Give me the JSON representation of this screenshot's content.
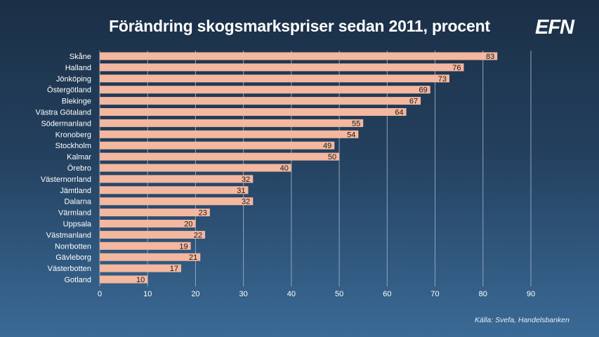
{
  "header": {
    "title": "Förändring skogsmarkspriser sedan 2011, procent",
    "logo_text": "EFN"
  },
  "footer": {
    "source": "Källa: Svefa, Handelsbanken"
  },
  "colors": {
    "bar": "#f4b79f",
    "grid": "#8fa6bd",
    "text": "#ffffff",
    "label_text": "#1a1a1a"
  },
  "chart_data": {
    "type": "bar",
    "orientation": "horizontal",
    "title": "Förändring skogsmarkspriser sedan 2011, procent",
    "xlabel": "",
    "ylabel": "",
    "categories": [
      "Skåne",
      "Halland",
      "Jönköping",
      "Östergötland",
      "Blekinge",
      "Västra Götaland",
      "Södermanland",
      "Kronoberg",
      "Stockholm",
      "Kalmar",
      "Örebro",
      "Västernorrland",
      "Jämtland",
      "Dalarna",
      "Värmland",
      "Uppsala",
      "Västmanland",
      "Norrbotten",
      "Gävleborg",
      "Västerbotten",
      "Gotland"
    ],
    "values": [
      83,
      76,
      73,
      69,
      67,
      64,
      55,
      54,
      49,
      50,
      40,
      32,
      31,
      32,
      23,
      20,
      22,
      19,
      21,
      17,
      10
    ],
    "xlim": [
      0,
      90
    ],
    "xticks": [
      0,
      10,
      20,
      30,
      40,
      50,
      60,
      70,
      80,
      90
    ],
    "grid": true,
    "legend": "none"
  }
}
